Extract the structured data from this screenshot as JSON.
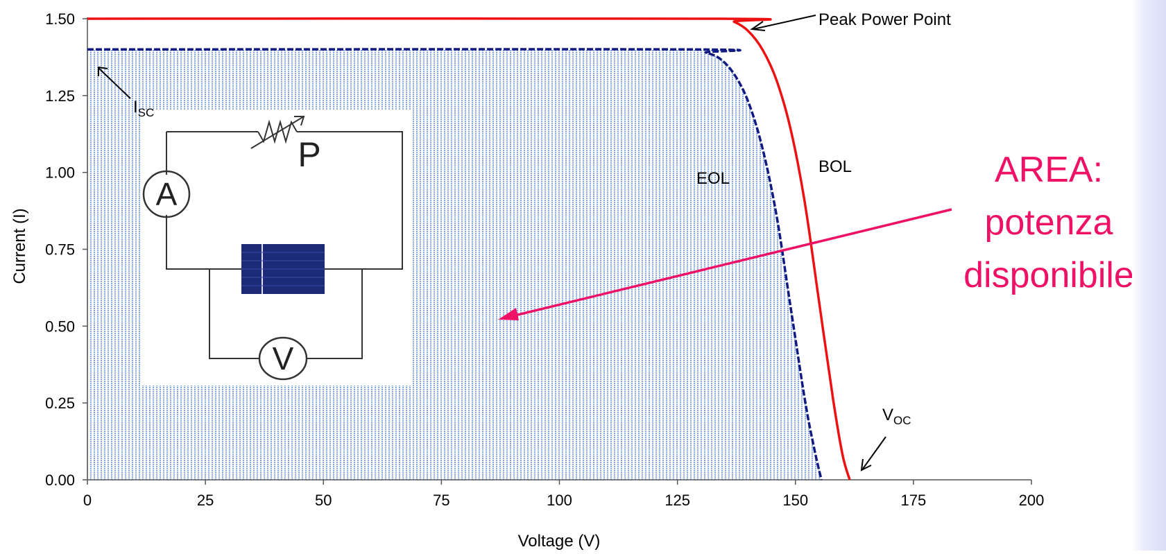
{
  "colors": {
    "bol": "#ee1111",
    "eol": "#101a80",
    "area_fill": "#8fb4ef",
    "callout": "#ee1166",
    "axis": "#555555"
  },
  "chart_data": {
    "type": "line",
    "title": "",
    "xlabel": "Voltage (V)",
    "ylabel": "Current (I)",
    "xlim": [
      0,
      200
    ],
    "ylim": [
      0,
      1.5
    ],
    "x_ticks": [
      "0",
      "25",
      "50",
      "75",
      "100",
      "125",
      "150",
      "175",
      "200"
    ],
    "y_ticks": [
      "0.00",
      "0.25",
      "0.50",
      "0.75",
      "1.00",
      "1.25",
      "1.50"
    ],
    "grid": false,
    "series": [
      {
        "name": "BOL",
        "color": "#ee1111",
        "x": [
          0,
          134,
          137,
          140,
          143,
          146,
          149,
          152,
          155,
          158,
          160,
          161.5
        ],
        "y": [
          1.5,
          1.5,
          1.49,
          1.46,
          1.4,
          1.3,
          1.14,
          0.9,
          0.58,
          0.26,
          0.08,
          0
        ]
      },
      {
        "name": "EOL",
        "color": "#101a80",
        "x": [
          0,
          128,
          131,
          134,
          137,
          140,
          143,
          146,
          149,
          152,
          154,
          155.5
        ],
        "y": [
          1.4,
          1.4,
          1.39,
          1.37,
          1.32,
          1.23,
          1.08,
          0.86,
          0.56,
          0.26,
          0.1,
          0
        ]
      }
    ],
    "annotations": {
      "peak": "Peak Power Point",
      "bol": "BOL",
      "eol": "EOL",
      "isc_main": "I",
      "isc_sub": "SC",
      "voc_main": "V",
      "voc_sub": "OC"
    }
  },
  "callout": {
    "line1": "AREA:",
    "line2": "potenza",
    "line3": "disponibile"
  },
  "inset": {
    "ammeter": "A",
    "voltmeter": "V",
    "load": "P"
  }
}
